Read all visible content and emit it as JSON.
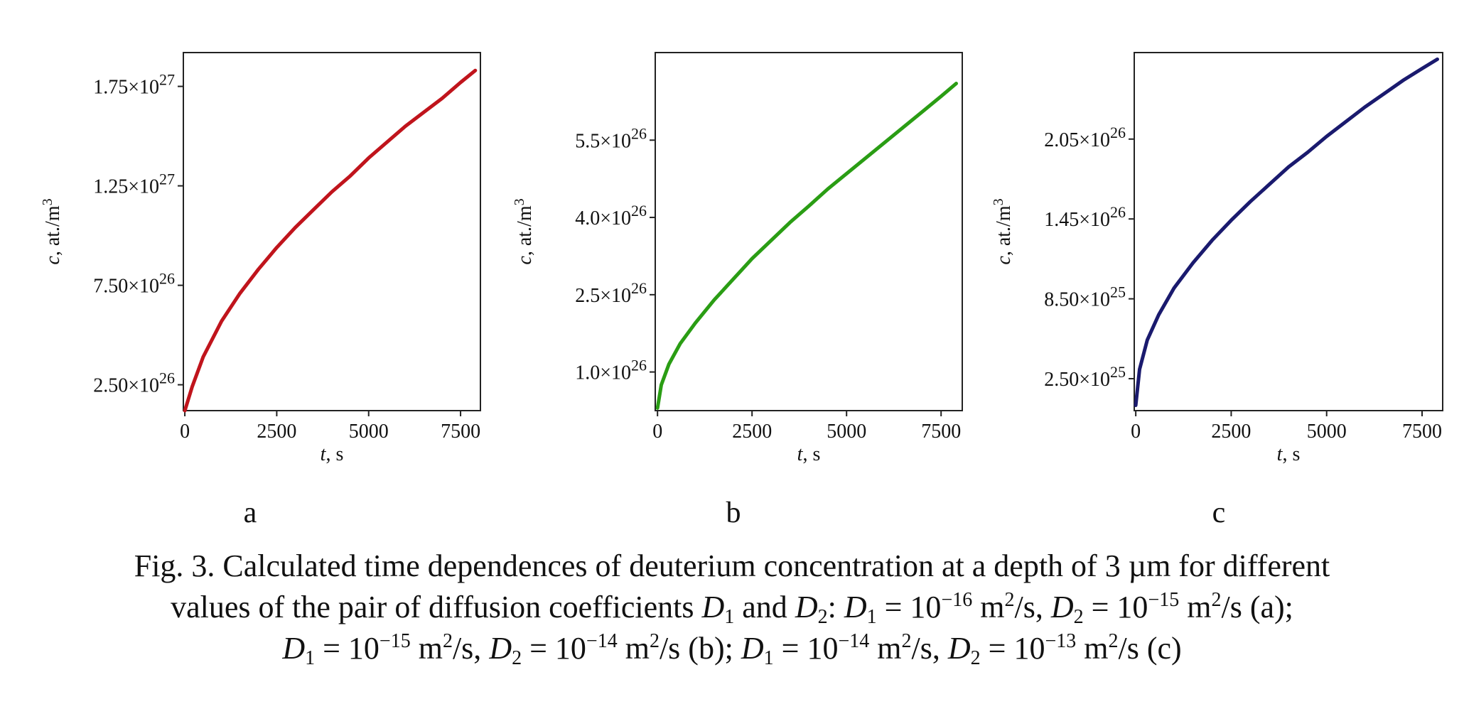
{
  "chart_data": [
    {
      "type": "line",
      "panel": "a",
      "color": "#c0141c",
      "xlabel": {
        "var": "t",
        "unit": ", s"
      },
      "ylabel": {
        "var": "c",
        "unit": ", at./m",
        "exp": "3"
      },
      "xlim": [
        -40,
        8040
      ],
      "ylim": [
        1.2e+26,
        1.92e+27
      ],
      "xticks": [
        {
          "v": 0,
          "label": "0"
        },
        {
          "v": 2500,
          "label": "2500"
        },
        {
          "v": 5000,
          "label": "5000"
        },
        {
          "v": 7500,
          "label": "7500"
        }
      ],
      "yticks": [
        {
          "v": 2.5e+26,
          "mant": "2.50×10",
          "exp": "26"
        },
        {
          "v": 7.5e+26,
          "mant": "7.50×10",
          "exp": "26"
        },
        {
          "v": 1.25e+27,
          "mant": "1.25×10",
          "exp": "27"
        },
        {
          "v": 1.75e+27,
          "mant": "1.75×10",
          "exp": "27"
        }
      ],
      "series": [
        {
          "x": [
            0,
            200,
            500,
            1000,
            1500,
            2000,
            2500,
            3000,
            3500,
            4000,
            4500,
            5000,
            5500,
            6000,
            6500,
            7000,
            7500,
            7900
          ],
          "y": [
            1.2e+26,
            2.4e+26,
            3.9e+26,
            5.7e+26,
            7.1e+26,
            8.3e+26,
            9.4e+26,
            1.04e+27,
            1.13e+27,
            1.22e+27,
            1.3e+27,
            1.39e+27,
            1.47e+27,
            1.55e+27,
            1.62e+27,
            1.69e+27,
            1.77e+27,
            1.83e+27
          ]
        }
      ]
    },
    {
      "type": "line",
      "panel": "b",
      "color": "#2a9d14",
      "xlabel": {
        "var": "t",
        "unit": ", s"
      },
      "ylabel": {
        "var": "c",
        "unit": ", at./m",
        "exp": "3"
      },
      "xlim": [
        -60,
        8060
      ],
      "ylim": [
        2.5e+25,
        7.2e+26
      ],
      "xticks": [
        {
          "v": 0,
          "label": "0"
        },
        {
          "v": 2500,
          "label": "2500"
        },
        {
          "v": 5000,
          "label": "5000"
        },
        {
          "v": 7500,
          "label": "7500"
        }
      ],
      "yticks": [
        {
          "v": 1e+26,
          "mant": "1.0×10",
          "exp": "26"
        },
        {
          "v": 2.5e+26,
          "mant": "2.5×10",
          "exp": "26"
        },
        {
          "v": 4e+26,
          "mant": "4.0×10",
          "exp": "26"
        },
        {
          "v": 5.5e+26,
          "mant": "5.5×10",
          "exp": "26"
        }
      ],
      "series": [
        {
          "x": [
            0,
            100,
            300,
            600,
            1000,
            1500,
            2000,
            2500,
            3000,
            3500,
            4000,
            4500,
            5000,
            5500,
            6000,
            6500,
            7000,
            7500,
            7900
          ],
          "y": [
            3e+25,
            7.5e+25,
            1.15e+26,
            1.55e+26,
            1.95e+26,
            2.4e+26,
            2.8e+26,
            3.2e+26,
            3.55e+26,
            3.9e+26,
            4.22e+26,
            4.55e+26,
            4.85e+26,
            5.15e+26,
            5.45e+26,
            5.75e+26,
            6.05e+26,
            6.35e+26,
            6.6e+26
          ]
        }
      ]
    },
    {
      "type": "line",
      "panel": "c",
      "color": "#1a1a6e",
      "xlabel": {
        "var": "t",
        "unit": ", s"
      },
      "ylabel": {
        "var": "c",
        "unit": ", at./m",
        "exp": "3"
      },
      "xlim": [
        -40,
        8040
      ],
      "ylim": [
        1e+24,
        2.7e+26
      ],
      "xticks": [
        {
          "v": 0,
          "label": "0"
        },
        {
          "v": 2500,
          "label": "2500"
        },
        {
          "v": 5000,
          "label": "5000"
        },
        {
          "v": 7500,
          "label": "7500"
        }
      ],
      "yticks": [
        {
          "v": 2.5e+25,
          "mant": "2.50×10",
          "exp": "25"
        },
        {
          "v": 8.5e+25,
          "mant": "8.50×10",
          "exp": "25"
        },
        {
          "v": 1.45e+26,
          "mant": "1.45×10",
          "exp": "26"
        },
        {
          "v": 2.05e+26,
          "mant": "2.05×10",
          "exp": "26"
        }
      ],
      "series": [
        {
          "x": [
            0,
            100,
            300,
            600,
            1000,
            1500,
            2000,
            2500,
            3000,
            3500,
            4000,
            4500,
            5000,
            5500,
            6000,
            6500,
            7000,
            7500,
            7900
          ],
          "y": [
            5e+24,
            3.2e+25,
            5.4e+25,
            7.3e+25,
            9.3e+25,
            1.12e+26,
            1.29e+26,
            1.44e+26,
            1.58e+26,
            1.71e+26,
            1.84e+26,
            1.95e+26,
            2.07e+26,
            2.18e+26,
            2.29e+26,
            2.39e+26,
            2.49e+26,
            2.58e+26,
            2.65e+26
          ]
        }
      ]
    }
  ],
  "caption": {
    "line1": "Fig. 3. Calculated time dependences of deuterium concentration at a depth of 3 µm for different",
    "line2": [
      {
        "t": "values of the pair of diffusion coefficients "
      },
      {
        "t": "D",
        "i": true
      },
      {
        "t": "1",
        "sub": true
      },
      {
        "t": " and "
      },
      {
        "t": "D",
        "i": true
      },
      {
        "t": "2",
        "sub": true
      },
      {
        "t": ": "
      },
      {
        "t": "D",
        "i": true
      },
      {
        "t": "1",
        "sub": true
      },
      {
        "t": " = 10"
      },
      {
        "t": "−16",
        "sup": true
      },
      {
        "t": " m"
      },
      {
        "t": "2",
        "sup": true
      },
      {
        "t": "/s, "
      },
      {
        "t": "D",
        "i": true
      },
      {
        "t": "2",
        "sub": true
      },
      {
        "t": " = 10"
      },
      {
        "t": "−15",
        "sup": true
      },
      {
        "t": " m"
      },
      {
        "t": "2",
        "sup": true
      },
      {
        "t": "/s (a);"
      }
    ],
    "line3": [
      {
        "t": "D",
        "i": true
      },
      {
        "t": "1",
        "sub": true
      },
      {
        "t": " = 10"
      },
      {
        "t": "−15",
        "sup": true
      },
      {
        "t": " m"
      },
      {
        "t": "2",
        "sup": true
      },
      {
        "t": "/s, "
      },
      {
        "t": "D",
        "i": true
      },
      {
        "t": "2",
        "sub": true
      },
      {
        "t": " = 10"
      },
      {
        "t": "−14",
        "sup": true
      },
      {
        "t": " m"
      },
      {
        "t": "2",
        "sup": true
      },
      {
        "t": "/s (b); "
      },
      {
        "t": "D",
        "i": true
      },
      {
        "t": "1",
        "sub": true
      },
      {
        "t": " = 10"
      },
      {
        "t": "−14",
        "sup": true
      },
      {
        "t": " m"
      },
      {
        "t": "2",
        "sup": true
      },
      {
        "t": "/s, "
      },
      {
        "t": "D",
        "i": true
      },
      {
        "t": "2",
        "sub": true
      },
      {
        "t": " = 10"
      },
      {
        "t": "−13",
        "sup": true
      },
      {
        "t": " m"
      },
      {
        "t": "2",
        "sup": true
      },
      {
        "t": "/s (c)"
      }
    ]
  }
}
